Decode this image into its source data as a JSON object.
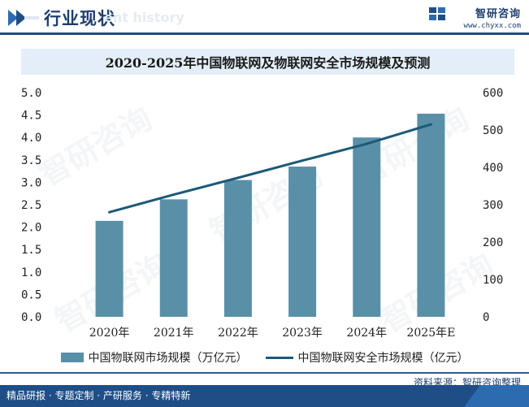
{
  "header": {
    "title": "行业现状",
    "ghost_text": "ent history",
    "brand_name": "智研咨询",
    "brand_url": "www.chyxx.com"
  },
  "chart_title": "2020-2025年中国物联网及物联网安全市场规模及预测",
  "chart_data": {
    "type": "bar",
    "title": "2020-2025年中国物联网及物联网安全市场规模及预测",
    "categories": [
      "2020年",
      "2021年",
      "2022年",
      "2023年",
      "2024年",
      "2025年E"
    ],
    "series": [
      {
        "name": "中国物联网市场规模（万亿元）",
        "type": "bar",
        "axis": "left",
        "color": "#5a8fa8",
        "values": [
          2.14,
          2.62,
          3.05,
          3.35,
          4.0,
          4.53
        ]
      },
      {
        "name": "中国物联网安全市场规模（亿元）",
        "type": "line",
        "axis": "right",
        "color": "#1b5a78",
        "values": [
          280,
          327,
          372,
          418,
          463,
          515
        ]
      }
    ],
    "ylim": [
      0,
      5.0
    ],
    "y2lim": [
      0,
      600
    ],
    "left_ticks": [
      "0.0",
      "0.5",
      "1.0",
      "1.5",
      "2.0",
      "2.5",
      "3.0",
      "3.5",
      "4.0",
      "4.5",
      "5.0"
    ],
    "right_ticks": [
      "0",
      "100",
      "200",
      "300",
      "400",
      "500",
      "600"
    ],
    "grid": false,
    "legend_position": "bottom"
  },
  "legend": {
    "bar_label": "中国物联网市场规模（万亿元）",
    "line_label": "中国物联网安全市场规模（亿元）"
  },
  "footer": {
    "source": "资料来源：智研咨询整理",
    "tagline": "精品研报 · 专题定制 · 产研服务 · 专精特新"
  },
  "watermark": "智研咨询",
  "colors": {
    "accent": "#1f4e86",
    "bar": "#5a8fa8",
    "line": "#1b5a78",
    "title_bg": "#e3eef8"
  }
}
